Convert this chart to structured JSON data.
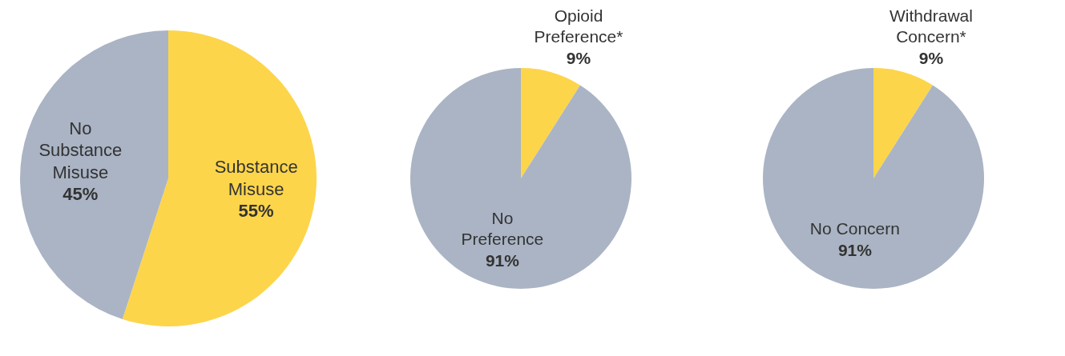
{
  "chart_data": [
    {
      "type": "pie",
      "categories": [
        "Substance\nMisuse",
        "No\nSubstance\nMisuse"
      ],
      "values": [
        55,
        45
      ],
      "colors": [
        "#fdd54a",
        "#aab4c4"
      ],
      "value_labels": [
        "55%",
        "45%"
      ]
    },
    {
      "type": "pie",
      "categories": [
        "Opioid\nPreference*",
        "No\nPreference"
      ],
      "values": [
        9,
        91
      ],
      "colors": [
        "#fdd54a",
        "#aab4c4"
      ],
      "value_labels": [
        "9%",
        "91%"
      ]
    },
    {
      "type": "pie",
      "categories": [
        "Withdrawal\nConcern*",
        "No Concern"
      ],
      "values": [
        9,
        91
      ],
      "colors": [
        "#fdd54a",
        "#aab4c4"
      ],
      "value_labels": [
        "9%",
        "91%"
      ]
    }
  ]
}
